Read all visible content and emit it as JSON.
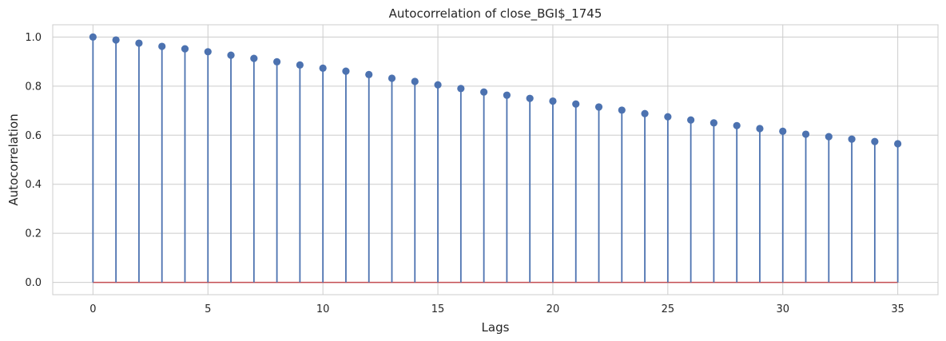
{
  "chart_data": {
    "type": "stem",
    "title": "Autocorrelation of close_BGI$_1745",
    "xlabel": "Lags",
    "ylabel": "Autocorrelation",
    "xlim": [
      -1.75,
      36.75
    ],
    "ylim": [
      -0.05,
      1.05
    ],
    "x_ticks": [
      0,
      5,
      10,
      15,
      20,
      25,
      30,
      35
    ],
    "y_ticks": [
      0.0,
      0.2,
      0.4,
      0.6,
      0.8,
      1.0
    ],
    "y_tick_labels": [
      "0.0",
      "0.2",
      "0.4",
      "0.6",
      "0.8",
      "1.0"
    ],
    "grid": true,
    "colors": {
      "stem": "#4c72b0",
      "baseline": "#c44e52",
      "grid": "#cccccc",
      "spine": "#cccccc"
    },
    "x": [
      0,
      1,
      2,
      3,
      4,
      5,
      6,
      7,
      8,
      9,
      10,
      11,
      12,
      13,
      14,
      15,
      16,
      17,
      18,
      19,
      20,
      21,
      22,
      23,
      24,
      25,
      26,
      27,
      28,
      29,
      30,
      31,
      32,
      33,
      34,
      35
    ],
    "values": [
      1.0,
      0.988,
      0.975,
      0.962,
      0.952,
      0.94,
      0.926,
      0.913,
      0.899,
      0.886,
      0.873,
      0.861,
      0.847,
      0.832,
      0.819,
      0.805,
      0.79,
      0.776,
      0.763,
      0.75,
      0.739,
      0.727,
      0.715,
      0.702,
      0.688,
      0.675,
      0.662,
      0.65,
      0.639,
      0.627,
      0.616,
      0.604,
      0.594,
      0.584,
      0.574,
      0.565
    ],
    "baseline": 0
  }
}
